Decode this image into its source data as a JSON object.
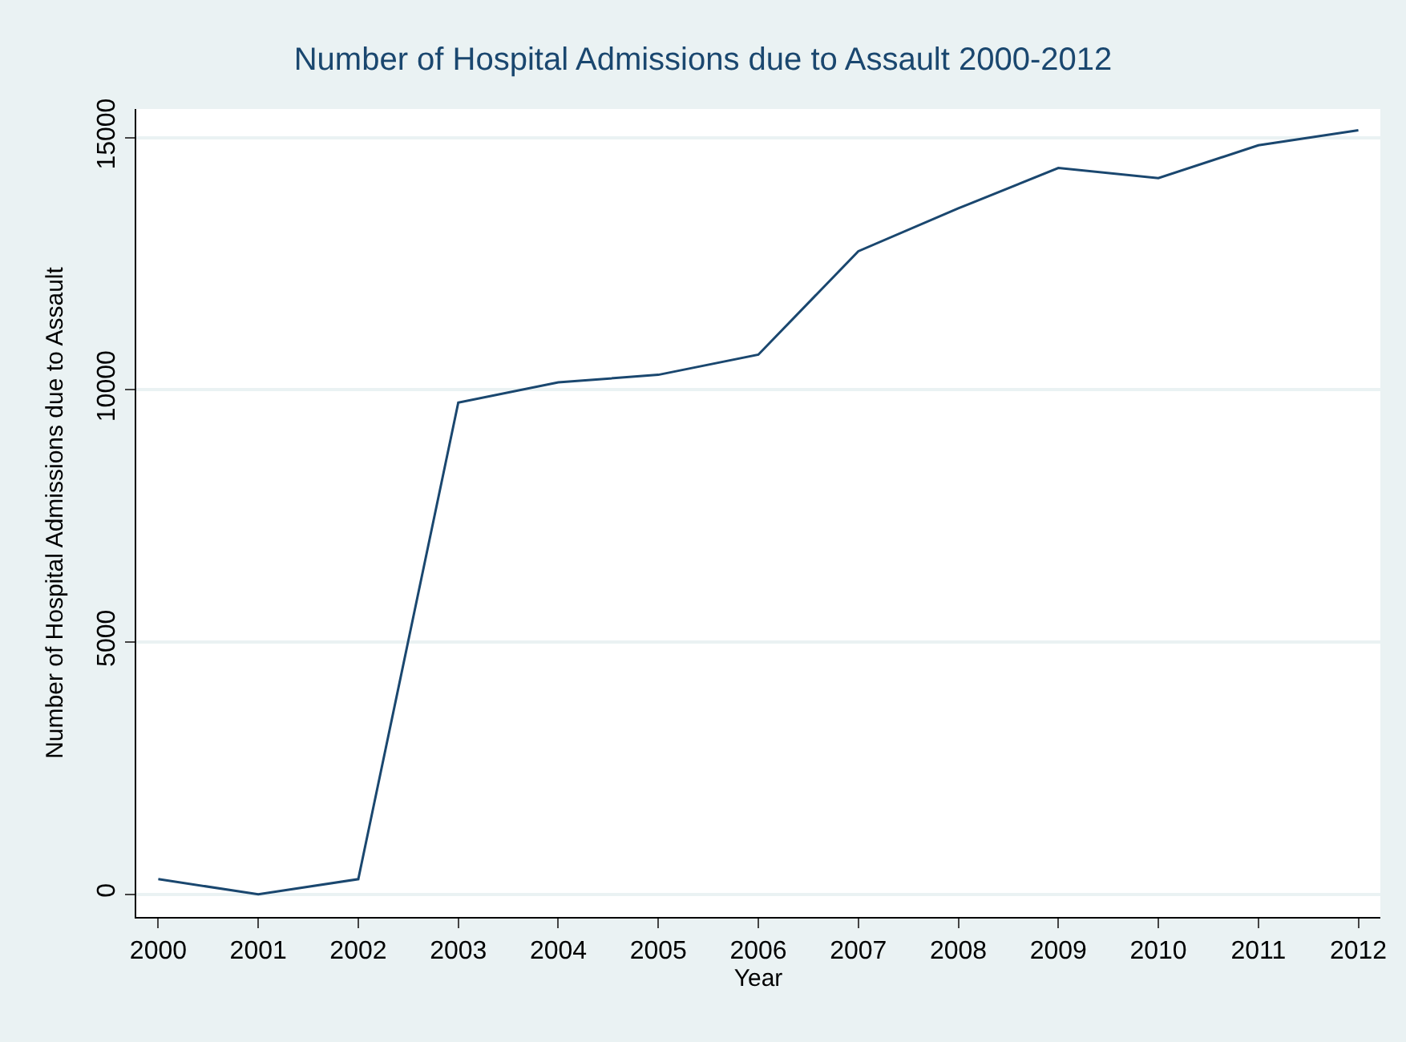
{
  "chart_data": {
    "type": "line",
    "title": "Number of Hospital Admissions due to Assault 2000-2012",
    "xlabel": "Year",
    "ylabel": "Number of Hospital Admissions due to Assault",
    "x": [
      2000,
      2001,
      2002,
      2003,
      2004,
      2005,
      2006,
      2007,
      2008,
      2009,
      2010,
      2011,
      2012
    ],
    "series": [
      {
        "color": "#1a476f",
        "values": [
          300,
          0,
          300,
          9750,
          10150,
          10300,
          10700,
          12750,
          13600,
          14400,
          14200,
          14850,
          15150
        ]
      }
    ],
    "xlim": [
      1999.78,
      2012.22
    ],
    "xticks": [
      2000,
      2001,
      2002,
      2003,
      2004,
      2005,
      2006,
      2007,
      2008,
      2009,
      2010,
      2011,
      2012
    ],
    "ylim": [
      -450,
      15570
    ],
    "yticks": [
      0,
      5000,
      10000,
      15000
    ],
    "grid": "y",
    "marker": "none",
    "line_style": "solid"
  }
}
